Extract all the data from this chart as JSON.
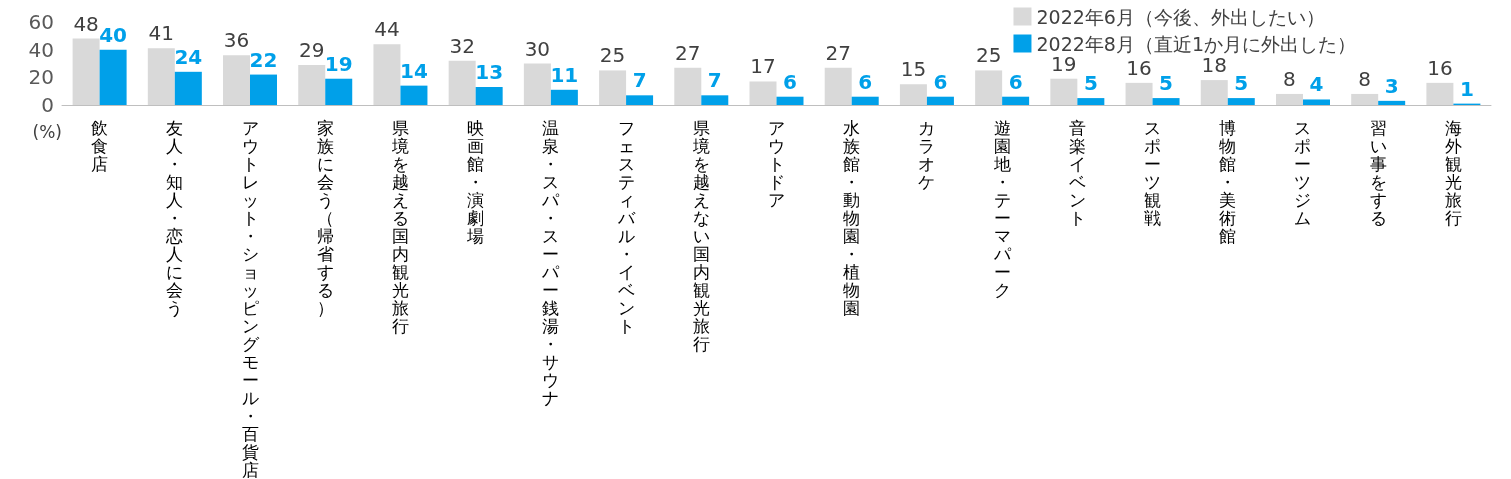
{
  "chart_data": {
    "type": "bar",
    "ylabel": "(%)",
    "categories": [
      "飲食店",
      "友人・知人・恋人に会う",
      "アウトレット・ショッピングモール・百貨店",
      "家族に会う（帰省する）",
      "県境を越える国内観光旅行",
      "映画館・演劇場",
      "温泉・スパ・スーパー銭湯・サウナ",
      "フェスティバル・イベント",
      "県境を越えない国内観光旅行",
      "アウトドア",
      "水族館・動物園・植物園",
      "カラオケ",
      "遊園地・テーマパーク",
      "音楽イベント",
      "スポーツ観戦",
      "博物館・美術館",
      "スポーツジム",
      "習い事をする",
      "海外観光旅行"
    ],
    "series": [
      {
        "name": "2022年6月（今後、外出したい）",
        "color": "#d9d9d9",
        "values": [
          48,
          41,
          36,
          29,
          44,
          32,
          30,
          25,
          27,
          17,
          27,
          15,
          25,
          19,
          16,
          18,
          8,
          8,
          16
        ]
      },
      {
        "name": "2022年8月（直近1か月に外出した）",
        "color": "#00a0e9",
        "values": [
          40,
          24,
          22,
          19,
          14,
          13,
          11,
          7,
          7,
          6,
          6,
          6,
          6,
          5,
          5,
          5,
          4,
          3,
          1
        ]
      }
    ],
    "ylim": [
      0,
      60
    ],
    "yticks": [
      0,
      20,
      40,
      60
    ],
    "data_labels": true,
    "legend": "top right",
    "grid": false
  }
}
